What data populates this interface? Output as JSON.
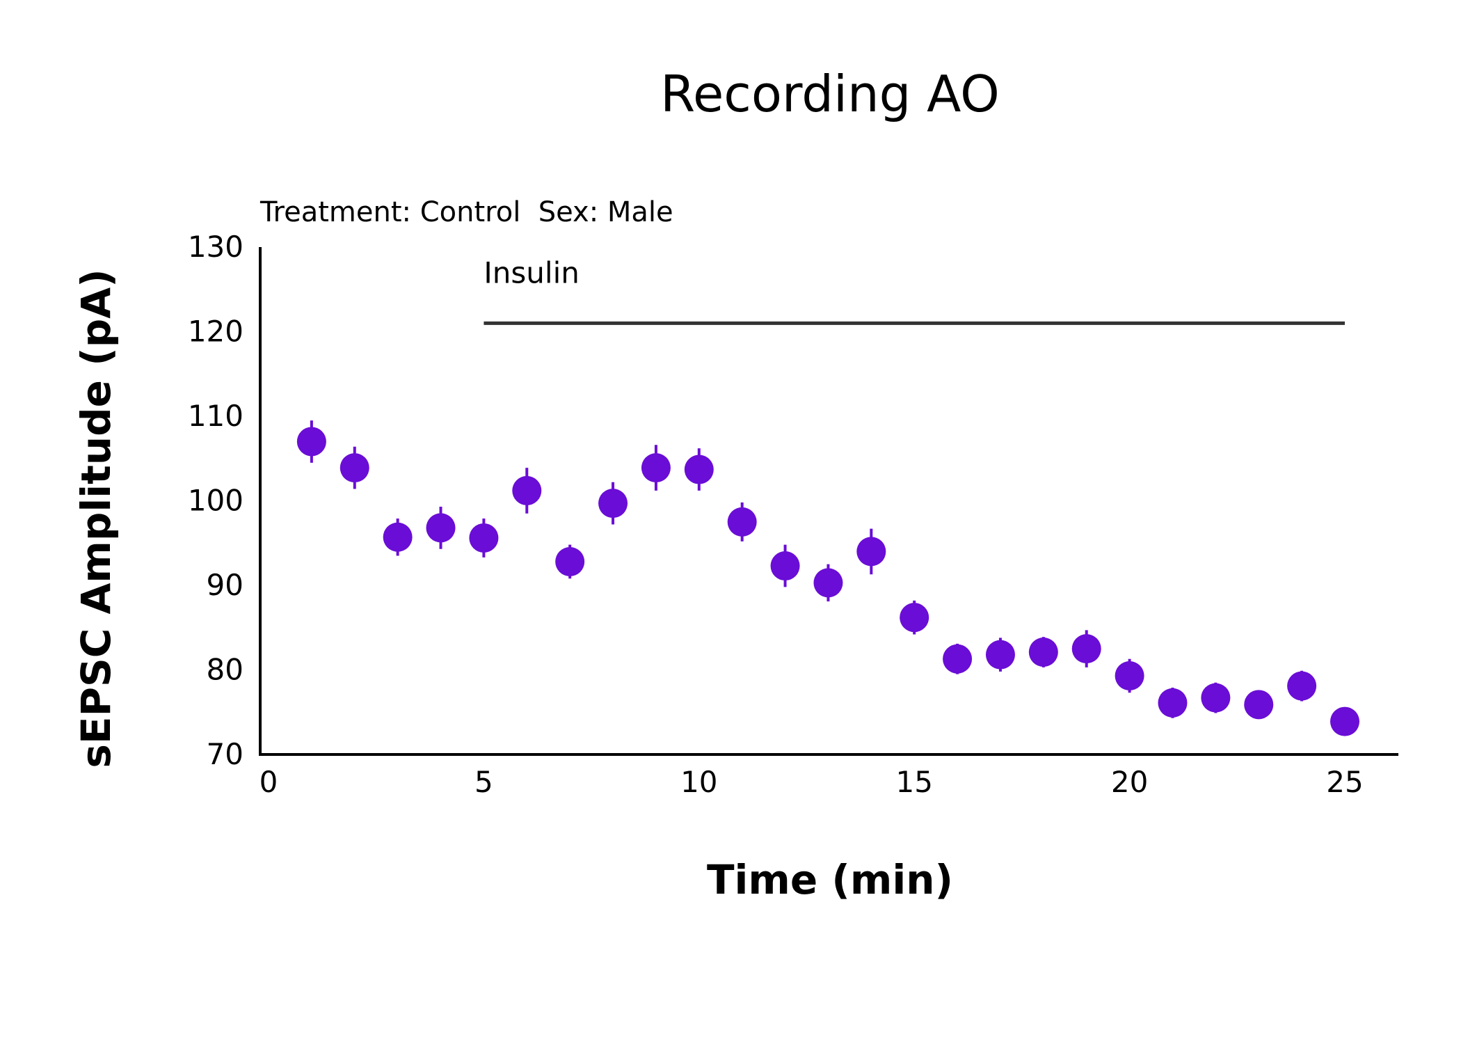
{
  "chart_data": {
    "type": "scatter",
    "title": "Recording AO",
    "subtitle": "Treatment: Control  Sex: Male",
    "xlabel": "Time (min)",
    "ylabel": "sEPSC Amplitude (pA)",
    "xlim": [
      0,
      26
    ],
    "ylim": [
      70,
      130
    ],
    "x_ticks": [
      0,
      5,
      10,
      15,
      20,
      25
    ],
    "y_ticks": [
      70,
      80,
      90,
      100,
      110,
      120,
      130
    ],
    "grid": false,
    "legend": "none",
    "marker_color": "#6a0dd6",
    "annotation": {
      "label": "Insulin",
      "x_start": 5,
      "x_end": 25,
      "y": 121,
      "color": "#333333"
    },
    "series": [
      {
        "x": [
          1,
          2,
          3,
          4,
          5,
          6,
          7,
          8,
          9,
          10,
          11,
          12,
          13,
          14,
          15,
          16,
          17,
          18,
          19,
          20,
          21,
          22,
          23,
          24,
          25
        ],
        "y": [
          107,
          103.9,
          95.7,
          96.8,
          95.6,
          101.2,
          92.8,
          99.7,
          103.9,
          103.7,
          97.5,
          92.3,
          90.3,
          94,
          86.2,
          81.3,
          81.8,
          82.1,
          82.5,
          79.3,
          76.1,
          76.7,
          75.9,
          78.1,
          73.9
        ],
        "error": [
          2.5,
          2.5,
          2.2,
          2.5,
          2.3,
          2.7,
          2.0,
          2.5,
          2.7,
          2.5,
          2.3,
          2.5,
          2.2,
          2.7,
          2.0,
          1.8,
          2.0,
          1.8,
          2.2,
          2.0,
          1.8,
          1.8,
          1.6,
          1.8,
          1.4
        ]
      }
    ]
  }
}
